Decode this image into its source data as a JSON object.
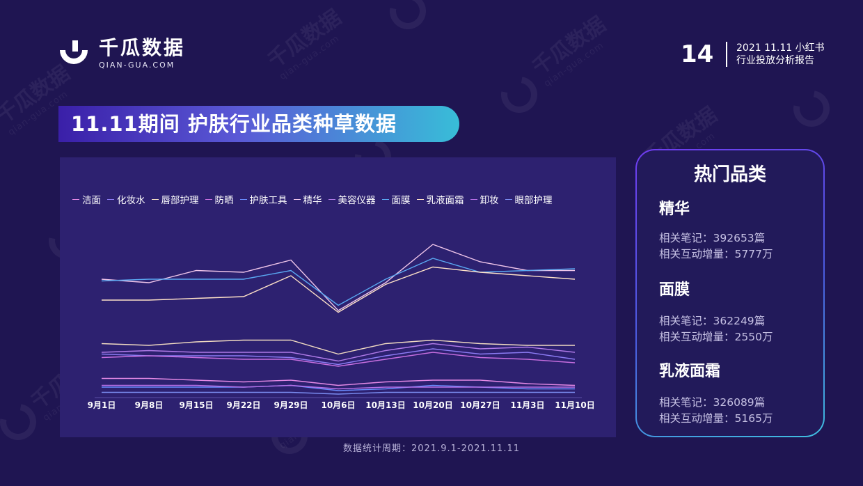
{
  "logo": {
    "cn": "千瓜数据",
    "en": "QIAN-GUA.COM"
  },
  "header": {
    "page_number": "14",
    "report_line1": "2021 11.11 小红书",
    "report_line2": "行业投放分析报告"
  },
  "banner": {
    "title": "11.11期间 护肤行业品类种草数据"
  },
  "footnote": "数据统计周期：2021.9.1-2021.11.11",
  "hot_panel": {
    "title": "热门品类",
    "items": [
      {
        "name": "精华",
        "notes": "相关笔记：392653篇",
        "interactions": "相关互动增量：5777万"
      },
      {
        "name": "面膜",
        "notes": "相关笔记：362249篇",
        "interactions": "相关互动增量：2550万"
      },
      {
        "name": "乳液面霜",
        "notes": "相关笔记：326089篇",
        "interactions": "相关互动增量：5165万"
      }
    ]
  },
  "colors": {
    "background": "#1f1552",
    "panel": "#2d2170",
    "accent_blue": "#3fc0e0",
    "accent_purple": "#6f3cf0"
  },
  "chart_data": {
    "type": "line",
    "title": "",
    "xlabel": "",
    "ylabel": "",
    "x": [
      "9月1日",
      "9月8日",
      "9月15日",
      "9月22日",
      "9月29日",
      "10月6日",
      "10月13日",
      "10月20日",
      "10月27日",
      "11月3日",
      "11月10日"
    ],
    "ylim": [
      0,
      100
    ],
    "grid": false,
    "legend_position": "top",
    "series": [
      {
        "name": "洁面",
        "color": "#e58ae6",
        "values": [
          11,
          11,
          10,
          9,
          10,
          7,
          9,
          10,
          10,
          8,
          7
        ]
      },
      {
        "name": "化妆水",
        "color": "#8d7cf5",
        "values": [
          25,
          24,
          24,
          24,
          23,
          19,
          24,
          28,
          25,
          26,
          22
        ]
      },
      {
        "name": "唇部护理",
        "color": "#f2dcc2",
        "values": [
          31,
          30,
          32,
          33,
          33,
          25,
          31,
          33,
          31,
          30,
          30
        ]
      },
      {
        "name": "防晒",
        "color": "#c86fe0",
        "values": [
          23,
          24,
          23,
          22,
          22,
          18,
          22,
          26,
          23,
          22,
          20
        ]
      },
      {
        "name": "护肤工具",
        "color": "#6a8cff",
        "values": [
          6,
          6,
          6,
          6,
          7,
          4,
          5,
          7,
          6,
          5,
          5
        ]
      },
      {
        "name": "精华",
        "color": "#f0c6ea",
        "values": [
          68,
          66,
          73,
          72,
          79,
          50,
          66,
          88,
          78,
          73,
          73
        ]
      },
      {
        "name": "美容仪器",
        "color": "#b07be8",
        "values": [
          26,
          27,
          26,
          26,
          26,
          21,
          27,
          31,
          28,
          29,
          26
        ]
      },
      {
        "name": "面膜",
        "color": "#5aa8f2",
        "values": [
          67,
          68,
          68,
          68,
          73,
          53,
          68,
          80,
          72,
          73,
          74
        ]
      },
      {
        "name": "乳液面霜",
        "color": "#ffe2c8",
        "values": [
          56,
          56,
          57,
          58,
          70,
          49,
          65,
          75,
          72,
          70,
          68
        ]
      },
      {
        "name": "卸妆",
        "color": "#b56fe6",
        "values": [
          7,
          7,
          7,
          6,
          7,
          5,
          6,
          6,
          6,
          6,
          6
        ]
      },
      {
        "name": "眼部护理",
        "color": "#7a8cf0",
        "values": [
          3,
          3,
          3,
          3,
          3,
          2,
          3,
          3,
          3,
          3,
          3
        ]
      }
    ]
  }
}
